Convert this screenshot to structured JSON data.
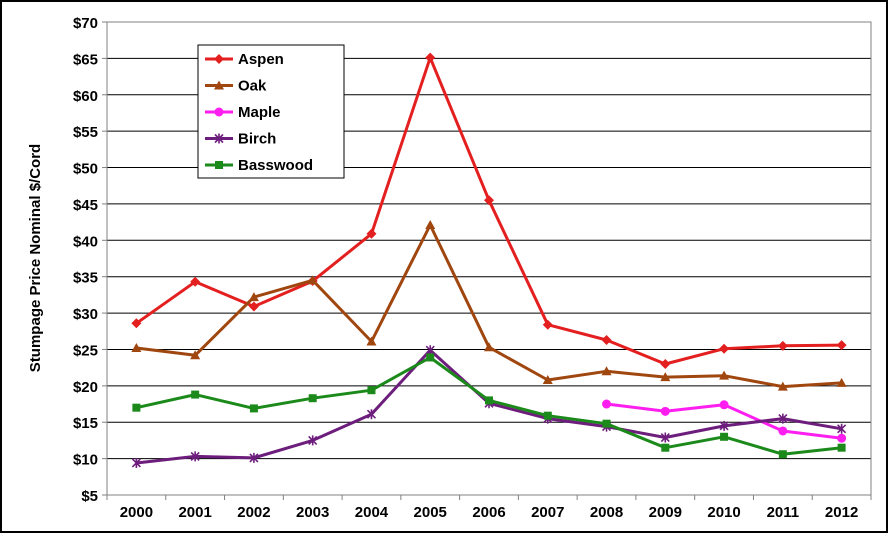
{
  "chart_data": {
    "type": "line",
    "title": "",
    "xlabel": "",
    "ylabel": "Stumpage Price Nominal $/Cord",
    "ylim": [
      5,
      70
    ],
    "y_tick_step": 5,
    "y_tick_prefix": "$",
    "y_ticks": [
      "$5",
      "$10",
      "$15",
      "$20",
      "$25",
      "$30",
      "$35",
      "$40",
      "$45",
      "$50",
      "$55",
      "$60",
      "$65",
      "$70"
    ],
    "categories": [
      "2000",
      "2001",
      "2002",
      "2003",
      "2004",
      "2005",
      "2006",
      "2007",
      "2008",
      "2009",
      "2010",
      "2011",
      "2012"
    ],
    "grid": "horizontal",
    "legend_position": "top-left",
    "series": [
      {
        "name": "Aspen",
        "color": "#e31f1f",
        "marker": "diamond",
        "values": [
          28.6,
          34.3,
          30.9,
          34.4,
          40.9,
          65.1,
          45.5,
          28.4,
          26.3,
          23.0,
          25.1,
          25.5,
          25.6
        ]
      },
      {
        "name": "Oak",
        "color": "#a0460f",
        "marker": "triangle",
        "values": [
          25.2,
          24.2,
          32.2,
          34.5,
          26.1,
          42.1,
          25.3,
          20.8,
          22.0,
          21.2,
          21.4,
          19.9,
          20.4
        ]
      },
      {
        "name": "Maple",
        "color": "#ff1ef0",
        "marker": "circle",
        "values": [
          null,
          null,
          null,
          null,
          null,
          null,
          null,
          null,
          17.5,
          16.5,
          17.4,
          13.8,
          12.8
        ]
      },
      {
        "name": "Birch",
        "color": "#6d1d7c",
        "marker": "star",
        "values": [
          9.4,
          10.3,
          10.1,
          12.5,
          16.1,
          24.9,
          17.6,
          15.5,
          14.4,
          12.9,
          14.5,
          15.5,
          14.1
        ]
      },
      {
        "name": "Basswood",
        "color": "#1b8a1b",
        "marker": "square",
        "values": [
          17.0,
          18.8,
          16.9,
          18.3,
          19.4,
          23.9,
          18.0,
          15.9,
          14.8,
          11.5,
          13.0,
          10.6,
          11.5
        ]
      }
    ]
  }
}
